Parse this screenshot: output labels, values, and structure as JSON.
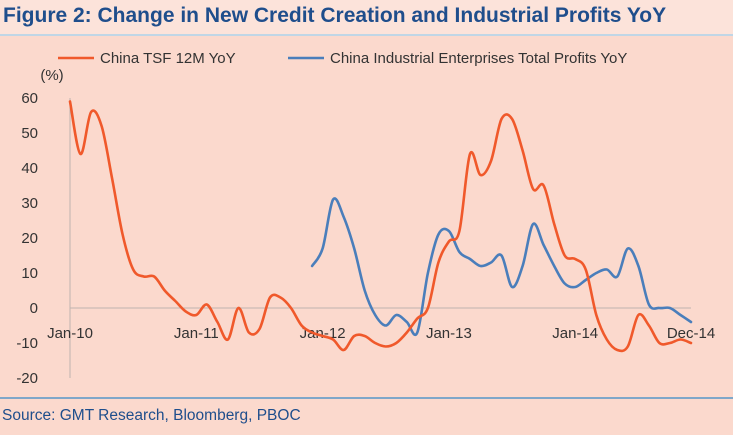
{
  "title": "Figure 2: Change in New Credit Creation and Industrial Profits YoY",
  "source": "Source: GMT Research, Bloomberg, PBOC",
  "chart_data": {
    "type": "line",
    "title": "Figure 2: Change in New Credit Creation and Industrial Profits YoY",
    "ylabel": "(%)",
    "xlabel": "",
    "ylim": [
      -20,
      60
    ],
    "yticks": [
      60,
      50,
      40,
      30,
      20,
      10,
      0,
      -10,
      -20
    ],
    "xlim": [
      "2010-01",
      "2014-12"
    ],
    "xticks": [
      {
        "label": "Jan-10",
        "x": "2010-01"
      },
      {
        "label": "Jan-11",
        "x": "2011-01"
      },
      {
        "label": "Jan-12",
        "x": "2012-01"
      },
      {
        "label": "Jan-13",
        "x": "2013-01"
      },
      {
        "label": "Jan-14",
        "x": "2014-01"
      },
      {
        "label": "Dec-14",
        "x": "2014-12"
      }
    ],
    "grid": false,
    "legend_position": "top",
    "series": [
      {
        "name": "China TSF 12M YoY",
        "color": "#f0592b",
        "points": [
          [
            "2010-01",
            59
          ],
          [
            "2010-02",
            44
          ],
          [
            "2010-03",
            56
          ],
          [
            "2010-04",
            52
          ],
          [
            "2010-05",
            37
          ],
          [
            "2010-06",
            21
          ],
          [
            "2010-07",
            11
          ],
          [
            "2010-08",
            9
          ],
          [
            "2010-09",
            9
          ],
          [
            "2010-10",
            5
          ],
          [
            "2010-11",
            2
          ],
          [
            "2010-12",
            -1
          ],
          [
            "2011-01",
            -2
          ],
          [
            "2011-02",
            1
          ],
          [
            "2011-03",
            -4
          ],
          [
            "2011-04",
            -9
          ],
          [
            "2011-05",
            0
          ],
          [
            "2011-06",
            -7
          ],
          [
            "2011-07",
            -6
          ],
          [
            "2011-08",
            3
          ],
          [
            "2011-09",
            3
          ],
          [
            "2011-10",
            0
          ],
          [
            "2011-11",
            -5
          ],
          [
            "2011-12",
            -7
          ],
          [
            "2012-01",
            -8
          ],
          [
            "2012-02",
            -9
          ],
          [
            "2012-03",
            -12
          ],
          [
            "2012-04",
            -8
          ],
          [
            "2012-05",
            -8
          ],
          [
            "2012-06",
            -10
          ],
          [
            "2012-07",
            -11
          ],
          [
            "2012-08",
            -10
          ],
          [
            "2012-09",
            -7
          ],
          [
            "2012-10",
            -3
          ],
          [
            "2012-11",
            0
          ],
          [
            "2012-12",
            13
          ],
          [
            "2013-01",
            19
          ],
          [
            "2013-02",
            22
          ],
          [
            "2013-03",
            44
          ],
          [
            "2013-04",
            38
          ],
          [
            "2013-05",
            42
          ],
          [
            "2013-06",
            54
          ],
          [
            "2013-07",
            54
          ],
          [
            "2013-08",
            45
          ],
          [
            "2013-09",
            34
          ],
          [
            "2013-10",
            35
          ],
          [
            "2013-11",
            24
          ],
          [
            "2013-12",
            15
          ],
          [
            "2014-01",
            14
          ],
          [
            "2014-02",
            11
          ],
          [
            "2014-03",
            -2
          ],
          [
            "2014-04",
            -9
          ],
          [
            "2014-05",
            -12
          ],
          [
            "2014-06",
            -11
          ],
          [
            "2014-07",
            -2
          ],
          [
            "2014-08",
            -5
          ],
          [
            "2014-09",
            -10
          ],
          [
            "2014-10",
            -10
          ],
          [
            "2014-11",
            -9
          ],
          [
            "2014-12",
            -10
          ]
        ]
      },
      {
        "name": "China Industrial Enterprises Total Profits YoY",
        "color": "#4a7ebb",
        "points": [
          [
            "2011-12",
            12
          ],
          [
            "2012-01",
            17
          ],
          [
            "2012-02",
            31
          ],
          [
            "2012-03",
            26
          ],
          [
            "2012-04",
            17
          ],
          [
            "2012-05",
            5
          ],
          [
            "2012-06",
            -2
          ],
          [
            "2012-07",
            -5
          ],
          [
            "2012-08",
            -2
          ],
          [
            "2012-09",
            -4
          ],
          [
            "2012-10",
            -7
          ],
          [
            "2012-11",
            10
          ],
          [
            "2012-12",
            21
          ],
          [
            "2013-01",
            22
          ],
          [
            "2013-02",
            16
          ],
          [
            "2013-03",
            14
          ],
          [
            "2013-04",
            12
          ],
          [
            "2013-05",
            13
          ],
          [
            "2013-06",
            15
          ],
          [
            "2013-07",
            6
          ],
          [
            "2013-08",
            12
          ],
          [
            "2013-09",
            24
          ],
          [
            "2013-10",
            18
          ],
          [
            "2013-11",
            12
          ],
          [
            "2013-12",
            7
          ],
          [
            "2014-01",
            6
          ],
          [
            "2014-02",
            8
          ],
          [
            "2014-03",
            10
          ],
          [
            "2014-04",
            11
          ],
          [
            "2014-05",
            9
          ],
          [
            "2014-06",
            17
          ],
          [
            "2014-07",
            12
          ],
          [
            "2014-08",
            1
          ],
          [
            "2014-09",
            0
          ],
          [
            "2014-10",
            0
          ],
          [
            "2014-11",
            -2
          ],
          [
            "2014-12",
            -4
          ]
        ]
      }
    ]
  }
}
